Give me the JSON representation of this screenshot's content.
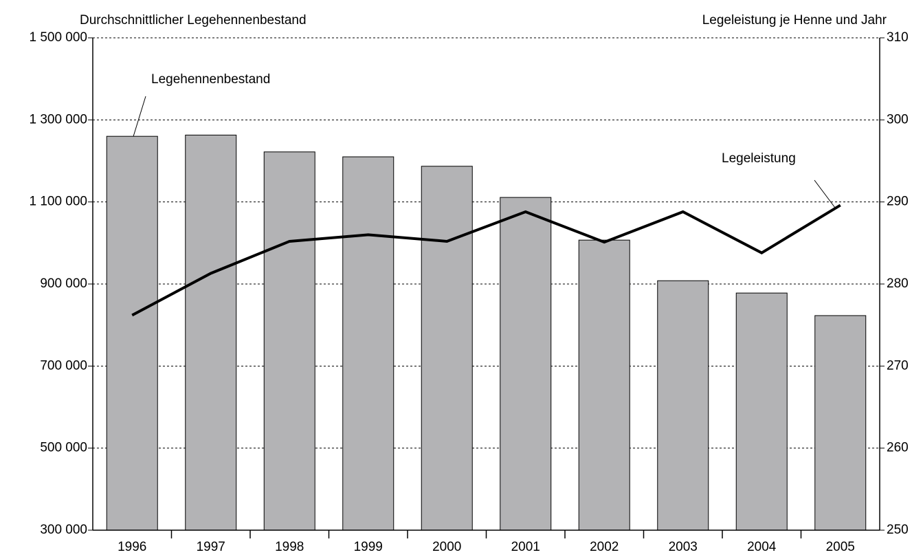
{
  "chart_data": {
    "type": "bar-line",
    "y_label": "Durchschnittlicher Legehennenbestand",
    "y2_label": "Legeleistung je Henne und Jahr",
    "categories": [
      "1996",
      "1997",
      "1998",
      "1999",
      "2000",
      "2001",
      "2002",
      "2003",
      "2004",
      "2005"
    ],
    "series": [
      {
        "name": "Legehennenbestand",
        "type": "bar",
        "color": "#b3b3b5",
        "values": [
          1260000,
          1263000,
          1222000,
          1210000,
          1187000,
          1111000,
          1007000,
          908000,
          878000,
          823000
        ]
      },
      {
        "name": "Legeleistung",
        "type": "line",
        "axis": "y2",
        "color": "#000000",
        "values": [
          276.2,
          281.3,
          285.2,
          286.0,
          285.2,
          288.8,
          285.1,
          288.8,
          283.8,
          289.6
        ]
      }
    ],
    "ylim": [
      300000,
      1500000
    ],
    "yticks": [
      {
        "value": 300000,
        "label": "300 000"
      },
      {
        "value": 500000,
        "label": "500 000"
      },
      {
        "value": 700000,
        "label": "700 000"
      },
      {
        "value": 900000,
        "label": "900 000"
      },
      {
        "value": 1100000,
        "label": "1 100 000"
      },
      {
        "value": 1300000,
        "label": "1 300 000"
      },
      {
        "value": 1500000,
        "label": "1 500 000"
      }
    ],
    "y2lim": [
      250,
      310
    ],
    "y2ticks": [
      250,
      260,
      270,
      280,
      290,
      300,
      310
    ],
    "grid": true
  }
}
